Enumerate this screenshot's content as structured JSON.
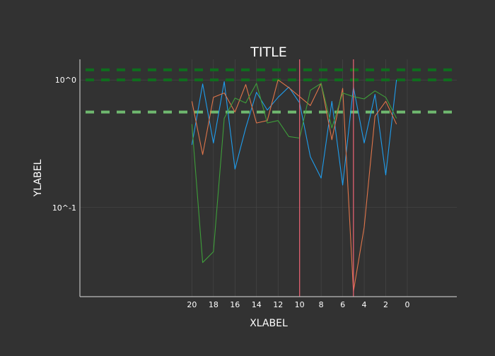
{
  "colors": {
    "background": "#323232",
    "axis": "#bdbdbd",
    "grid": "#4a4a4a",
    "text": "#ffffff",
    "hline_dark": "#0f6e1e",
    "hline_light": "#6fb86f",
    "vline": "#e06070"
  },
  "chart_data": {
    "type": "line",
    "title": "TITLE",
    "xlabel": "XLABEL",
    "ylabel": "YLABEL",
    "x_axis": {
      "reversed": true,
      "range": [
        -4.6,
        30.4
      ],
      "ticks": [
        20,
        18,
        16,
        14,
        12,
        10,
        8,
        6,
        4,
        2,
        0
      ]
    },
    "y_axis": {
      "scale": "log",
      "range": [
        0.02,
        1.45
      ],
      "ticks": [
        {
          "value": 1.0,
          "label": "10^0"
        },
        {
          "value": 0.1,
          "label": "10^-1"
        }
      ]
    },
    "grid": true,
    "legend": "none",
    "series": [
      {
        "color": "#1f9ded",
        "x": [
          20,
          19,
          18,
          17,
          16,
          15,
          14,
          13,
          12,
          11,
          10,
          9,
          8,
          7,
          6,
          5,
          4,
          3,
          2,
          1
        ],
        "y": [
          0.31,
          0.93,
          0.32,
          0.97,
          0.2,
          0.42,
          0.8,
          0.58,
          0.73,
          0.88,
          0.66,
          0.25,
          0.17,
          0.68,
          0.15,
          0.88,
          0.32,
          0.77,
          0.18,
          1.0
        ]
      },
      {
        "color": "#e0754a",
        "x": [
          20,
          19,
          18,
          17,
          16,
          15,
          14,
          13,
          12,
          11,
          10,
          9,
          8,
          7,
          6,
          5,
          4,
          3,
          2,
          1
        ],
        "y": [
          0.68,
          0.26,
          0.73,
          0.79,
          0.56,
          0.92,
          0.46,
          0.48,
          1.0,
          0.87,
          0.74,
          0.63,
          0.94,
          0.34,
          0.86,
          0.022,
          0.07,
          0.52,
          0.68,
          0.45
        ]
      },
      {
        "color": "#3e9e3a",
        "x": [
          20,
          19,
          18,
          17,
          16,
          15,
          14,
          13,
          12,
          11,
          10,
          9,
          8,
          7,
          6,
          5,
          4,
          3,
          2,
          1
        ],
        "y": [
          0.45,
          0.037,
          0.045,
          0.5,
          0.72,
          0.66,
          0.94,
          0.46,
          0.48,
          0.36,
          0.35,
          0.83,
          0.94,
          0.42,
          0.79,
          0.74,
          0.71,
          0.82,
          0.73,
          0.5
        ]
      }
    ],
    "hlines": [
      {
        "y": 1.2,
        "color": "#0f6e1e",
        "style": "dashed"
      },
      {
        "y": 1.0,
        "color": "#0f6e1e",
        "style": "dashed"
      },
      {
        "y": 0.56,
        "color": "#6fb86f",
        "style": "dashed"
      }
    ],
    "vlines": [
      {
        "x": 10,
        "color": "#e06070"
      },
      {
        "x": 5,
        "color": "#e06070"
      }
    ]
  }
}
